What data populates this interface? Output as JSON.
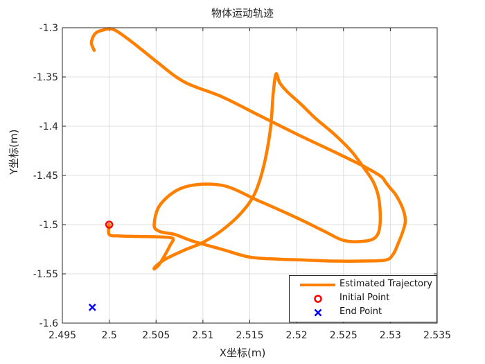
{
  "chart_data": {
    "type": "line",
    "title": "物体运动轨迹",
    "xlabel": "X坐标(m)",
    "ylabel": "Y坐标(m)",
    "xlim": [
      2.495,
      2.535
    ],
    "ylim": [
      -1.6,
      -1.3
    ],
    "x_ticks": [
      2.495,
      2.5,
      2.505,
      2.51,
      2.515,
      2.52,
      2.525,
      2.53,
      2.535
    ],
    "y_ticks": [
      -1.3,
      -1.35,
      -1.4,
      -1.45,
      -1.5,
      -1.55,
      -1.6
    ],
    "x_tick_labels": [
      "2.495",
      "2.5",
      "2.505",
      "2.51",
      "2.515",
      "2.52",
      "2.525",
      "2.53",
      "2.535"
    ],
    "y_tick_labels": [
      "-1.3",
      "-1.35",
      "-1.4",
      "-1.45",
      "-1.5",
      "-1.55",
      "-1.6"
    ],
    "grid": true,
    "legend_position": "bottom-right",
    "series": [
      {
        "name": "Estimated Trajectory",
        "color": "#ff8000",
        "x": [
          2.5,
          2.5,
          2.501,
          2.503,
          2.5055,
          2.5068,
          2.5065,
          2.506,
          2.5055,
          2.5052,
          2.5048,
          2.505,
          2.506,
          2.508,
          2.51,
          2.512,
          2.514,
          2.5155,
          2.5165,
          2.5172,
          2.5175,
          2.5178,
          2.5182,
          2.519,
          2.5205,
          2.522,
          2.524,
          2.5258,
          2.527,
          2.5282,
          2.5288,
          2.5289,
          2.5284,
          2.527,
          2.525,
          2.523,
          2.52,
          2.516,
          2.512,
          2.508,
          2.5055,
          2.5048,
          2.5054,
          2.507,
          2.509,
          2.512,
          2.515,
          2.518,
          2.521,
          2.524,
          2.527,
          2.5295,
          2.5303,
          2.5308,
          2.5314,
          2.5316,
          2.5313,
          2.5306,
          2.53,
          2.5295,
          2.529,
          2.527,
          2.524,
          2.52,
          2.516,
          2.512,
          2.508,
          2.505,
          2.5025,
          2.5005,
          2.4993,
          2.4985,
          2.4981,
          2.4984
        ],
        "y": [
          -1.5,
          -1.51,
          -1.5115,
          -1.512,
          -1.5125,
          -1.514,
          -1.521,
          -1.53,
          -1.538,
          -1.542,
          -1.545,
          -1.542,
          -1.535,
          -1.526,
          -1.518,
          -1.506,
          -1.489,
          -1.469,
          -1.44,
          -1.403,
          -1.367,
          -1.347,
          -1.356,
          -1.365,
          -1.378,
          -1.392,
          -1.408,
          -1.425,
          -1.44,
          -1.457,
          -1.475,
          -1.5,
          -1.513,
          -1.517,
          -1.516,
          -1.507,
          -1.493,
          -1.476,
          -1.46,
          -1.462,
          -1.479,
          -1.5,
          -1.507,
          -1.51,
          -1.517,
          -1.525,
          -1.533,
          -1.535,
          -1.536,
          -1.537,
          -1.537,
          -1.536,
          -1.53,
          -1.52,
          -1.505,
          -1.495,
          -1.483,
          -1.47,
          -1.463,
          -1.457,
          -1.451,
          -1.44,
          -1.426,
          -1.408,
          -1.389,
          -1.37,
          -1.355,
          -1.334,
          -1.315,
          -1.302,
          -1.3025,
          -1.306,
          -1.315,
          -1.323
        ]
      }
    ],
    "markers": [
      {
        "name": "Initial Point",
        "x": 2.5,
        "y": -1.5,
        "symbol": "circle",
        "color": "#ff0000"
      },
      {
        "name": "End Point",
        "x": 2.4982,
        "y": -1.584,
        "symbol": "x",
        "color": "#0000ff"
      }
    ]
  }
}
